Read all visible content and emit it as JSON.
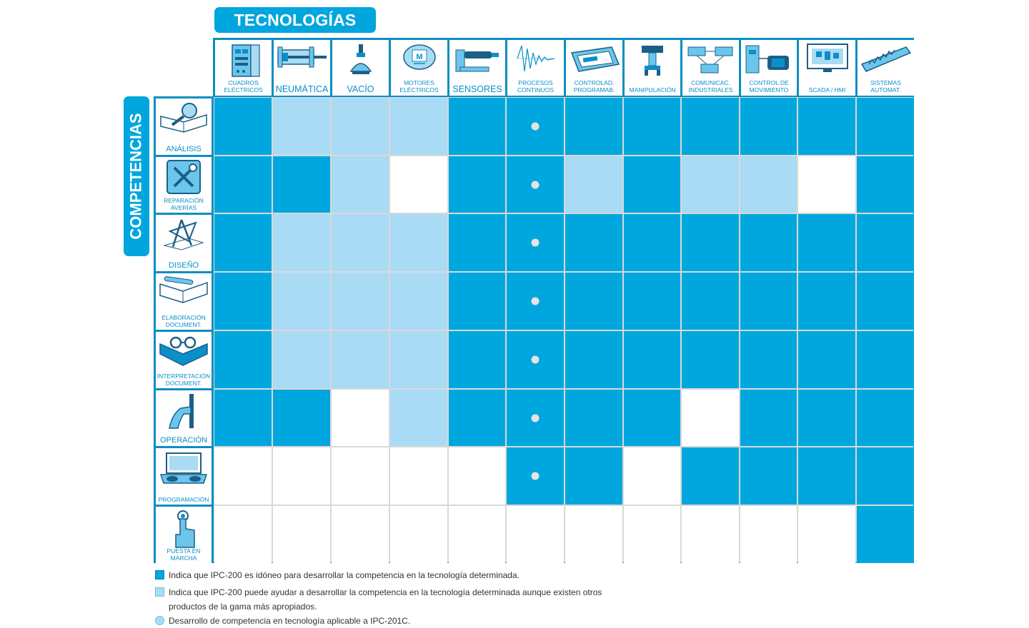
{
  "headers": {
    "tecnologias": "TECNOLOGÍAS",
    "competencias": "COMPETENCIAS"
  },
  "technologies": [
    {
      "label": "CUADROS\nELÉCTRICOS",
      "icon": "electrical-panel-icon"
    },
    {
      "label": "NEUMÁTICA",
      "icon": "pneumatic-cylinder-icon"
    },
    {
      "label": "VACÍO",
      "icon": "vacuum-suction-cup-icon"
    },
    {
      "label": "MOTORES\nELÉCTRICOS",
      "icon": "electric-motor-icon"
    },
    {
      "label": "SENSORES",
      "icon": "sensor-icon"
    },
    {
      "label": "PROCESOS\nCONTINUOS",
      "icon": "signal-wave-icon"
    },
    {
      "label": "CONTROLAD.\nPROGRAMAB.",
      "icon": "plc-controller-icon"
    },
    {
      "label": "MANIPULACIÓN",
      "icon": "manipulator-icon"
    },
    {
      "label": "COMUNICAC.\nINDUSTRIALES",
      "icon": "network-devices-icon"
    },
    {
      "label": "CONTROL DE\nMOVIMIENTO",
      "icon": "servo-drive-icon"
    },
    {
      "label": "SCADA / HMI",
      "icon": "monitor-icon"
    },
    {
      "label": "SISTEMAS\nAUTOMAT.",
      "icon": "automation-system-icon"
    }
  ],
  "competences": [
    {
      "label": "ANÁLISIS",
      "icon": "magnifier-book-icon"
    },
    {
      "label": "REPARACIÓN\nAVERÍAS",
      "icon": "tools-repair-icon"
    },
    {
      "label": "DISEÑO",
      "icon": "design-compass-icon"
    },
    {
      "label": "ELABORACIÓN\nDOCUMENT.",
      "icon": "writing-book-icon"
    },
    {
      "label": "INTERPRETACIÓN\nDOCUMENT.",
      "icon": "reading-glasses-book-icon"
    },
    {
      "label": "OPERACIÓN",
      "icon": "hand-lever-icon"
    },
    {
      "label": "PROGRAMACIÓN",
      "icon": "laptop-typing-icon"
    },
    {
      "label": "PUESTA EN\nMARCHA",
      "icon": "press-button-icon"
    }
  ],
  "matrix": [
    [
      "F",
      "P",
      "P",
      "P",
      "F",
      "F",
      "F",
      "F",
      "F",
      "F",
      "F",
      "F"
    ],
    [
      "F",
      "F",
      "P",
      "N",
      "F",
      "F",
      "P",
      "F",
      "P",
      "P",
      "N",
      "F"
    ],
    [
      "F",
      "P",
      "P",
      "P",
      "F",
      "F",
      "F",
      "F",
      "F",
      "F",
      "F",
      "F"
    ],
    [
      "F",
      "P",
      "P",
      "P",
      "F",
      "F",
      "F",
      "F",
      "F",
      "F",
      "F",
      "F"
    ],
    [
      "F",
      "P",
      "P",
      "P",
      "F",
      "F",
      "F",
      "F",
      "F",
      "F",
      "F",
      "F"
    ],
    [
      "F",
      "F",
      "N",
      "P",
      "F",
      "F",
      "F",
      "F",
      "N",
      "F",
      "F",
      "F"
    ],
    [
      "N",
      "N",
      "N",
      "N",
      "N",
      "F",
      "F",
      "N",
      "F",
      "F",
      "F",
      "F"
    ],
    [
      "N",
      "N",
      "N",
      "N",
      "N",
      "N",
      "N",
      "N",
      "N",
      "N",
      "N",
      "F"
    ]
  ],
  "ipc201c_column": 5,
  "ipc201c_rows": [
    0,
    1,
    2,
    3,
    4,
    5,
    6
  ],
  "colors": {
    "full": "#00a7de",
    "partial": "#a9dbf4",
    "none": "#ffffff",
    "dot": "#e4e4e4",
    "label": "#0a8fc9"
  },
  "legend": {
    "full": "Indica que IPC-200 es idóneo para desarrollar la competencia en la tecnología determinada.",
    "partial_line1": "Indica que IPC-200 puede ayudar a desarrollar la competencia en la tecnología determinada aunque existen otros",
    "partial_line2": "productos de la gama más apropiados.",
    "circle": "Desarrollo de competencia en tecnología aplicable a IPC-201C."
  }
}
